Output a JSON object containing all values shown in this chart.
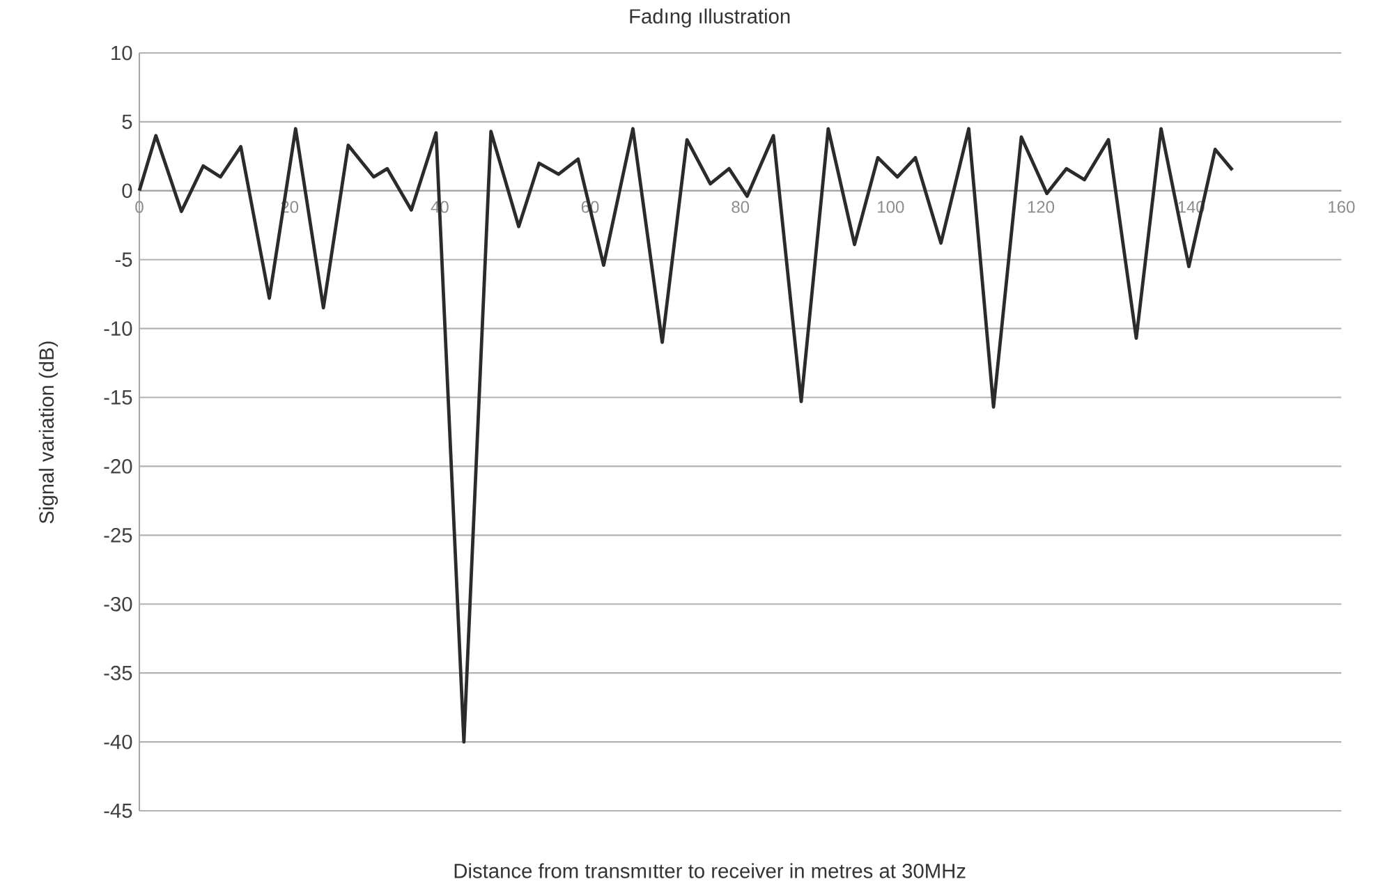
{
  "chart_data": {
    "type": "line",
    "title": "Fadıng ıllustration",
    "xlabel": "Distance from transmıtter to receiver in metres at 30MHz",
    "ylabel": "Signal variation (dB)",
    "xlim": [
      0,
      160
    ],
    "ylim": [
      -45,
      10
    ],
    "xticks": [
      0,
      20,
      40,
      60,
      80,
      100,
      120,
      140,
      160
    ],
    "yticks": [
      -45,
      -40,
      -35,
      -30,
      -25,
      -20,
      -15,
      -10,
      -5,
      0,
      5,
      10
    ],
    "grid": "y",
    "legend": false,
    "marker": "none",
    "line_style": "solid",
    "series": [
      {
        "color": "#2b2b2b",
        "x": [
          0,
          2.2,
          5.6,
          8.5,
          10.8,
          13.5,
          17.3,
          20.8,
          24.5,
          27.8,
          31.2,
          33,
          36.2,
          39.5,
          43.2,
          46.8,
          50.5,
          53.2,
          55.8,
          58.4,
          61.8,
          65.7,
          69.6,
          72.9,
          76,
          78.5,
          80.9,
          84.4,
          88.1,
          91.7,
          95.2,
          98.3,
          100.9,
          103.3,
          106.7,
          110.4,
          113.7,
          117.4,
          120.8,
          123.4,
          125.8,
          129,
          132.7,
          136,
          139.7,
          143.2,
          145.5
        ],
        "values": [
          0,
          4,
          -1.5,
          1.8,
          1,
          3.2,
          -7.8,
          4.5,
          -8.5,
          3.3,
          1,
          1.6,
          -1.4,
          4.2,
          -40,
          4.3,
          -2.6,
          2,
          1.2,
          2.3,
          -5.4,
          4.5,
          -11,
          3.7,
          0.5,
          1.6,
          -0.4,
          4,
          -15.3,
          4.5,
          -3.9,
          2.4,
          1,
          2.4,
          -3.8,
          4.5,
          -15.7,
          3.9,
          -0.2,
          1.6,
          0.8,
          3.7,
          -10.7,
          4.5,
          -5.5,
          3,
          1.5
        ]
      }
    ]
  }
}
